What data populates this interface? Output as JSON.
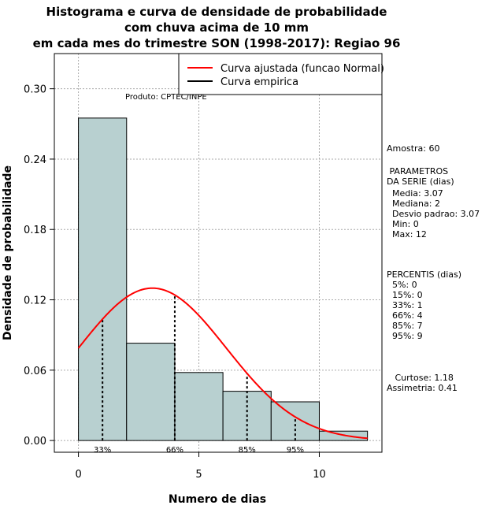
{
  "chart_data": {
    "type": "bar",
    "title_lines": [
      "Histograma e curva de densidade de probabilidade",
      "com chuva acima de 10 mm",
      "em cada mes do trimestre SON (1998-2017): Regiao 96"
    ],
    "xlabel": "Numero de dias",
    "ylabel": "Densidade de probabilidade",
    "xlim": [
      -1,
      12.6
    ],
    "ylim": [
      -0.01,
      0.33
    ],
    "x_ticks": [
      0,
      5,
      10
    ],
    "y_ticks": [
      "0.00",
      "0.06",
      "0.12",
      "0.18",
      "0.24",
      "0.30"
    ],
    "bins": [
      {
        "start": 0,
        "end": 2,
        "density": 0.275
      },
      {
        "start": 2,
        "end": 4,
        "density": 0.083
      },
      {
        "start": 4,
        "end": 6,
        "density": 0.058
      },
      {
        "start": 6,
        "end": 8,
        "density": 0.042
      },
      {
        "start": 8,
        "end": 10,
        "density": 0.033
      },
      {
        "start": 10,
        "end": 12,
        "density": 0.008
      }
    ],
    "bar_color": "#b8d0d0",
    "normal_curve": {
      "mean": 3.07,
      "sd": 3.07,
      "x_range": [
        0,
        12
      ],
      "color": "#ff0000",
      "label": "Curva ajustada (funcao Normal)"
    },
    "empirical_label": "Curva empirica",
    "percentile_lines": [
      {
        "x": 1,
        "label": "33%"
      },
      {
        "x": 4,
        "label": "66%"
      },
      {
        "x": 7,
        "label": "85%"
      },
      {
        "x": 9,
        "label": "95%"
      }
    ],
    "annotation": "Produto: CPTEC/INPE",
    "grid": true,
    "legend_position": "top-right"
  },
  "side_info": {
    "amostra": "Amostra: 60",
    "parametros_title": " PARAMETROS\nDA SERIE (dias)",
    "parametros": "  Media: 3.07\n  Mediana: 2\n  Desvio padrao: 3.07\n  Min: 0\n  Max: 12",
    "percentis_title": "PERCENTIS (dias)",
    "percentis": "  5%: 0\n  15%: 0\n  33%: 1\n  66%: 4\n  85%: 7\n  95%: 9",
    "stats": "   Curtose: 1.18\nAssimetria: 0.41"
  }
}
